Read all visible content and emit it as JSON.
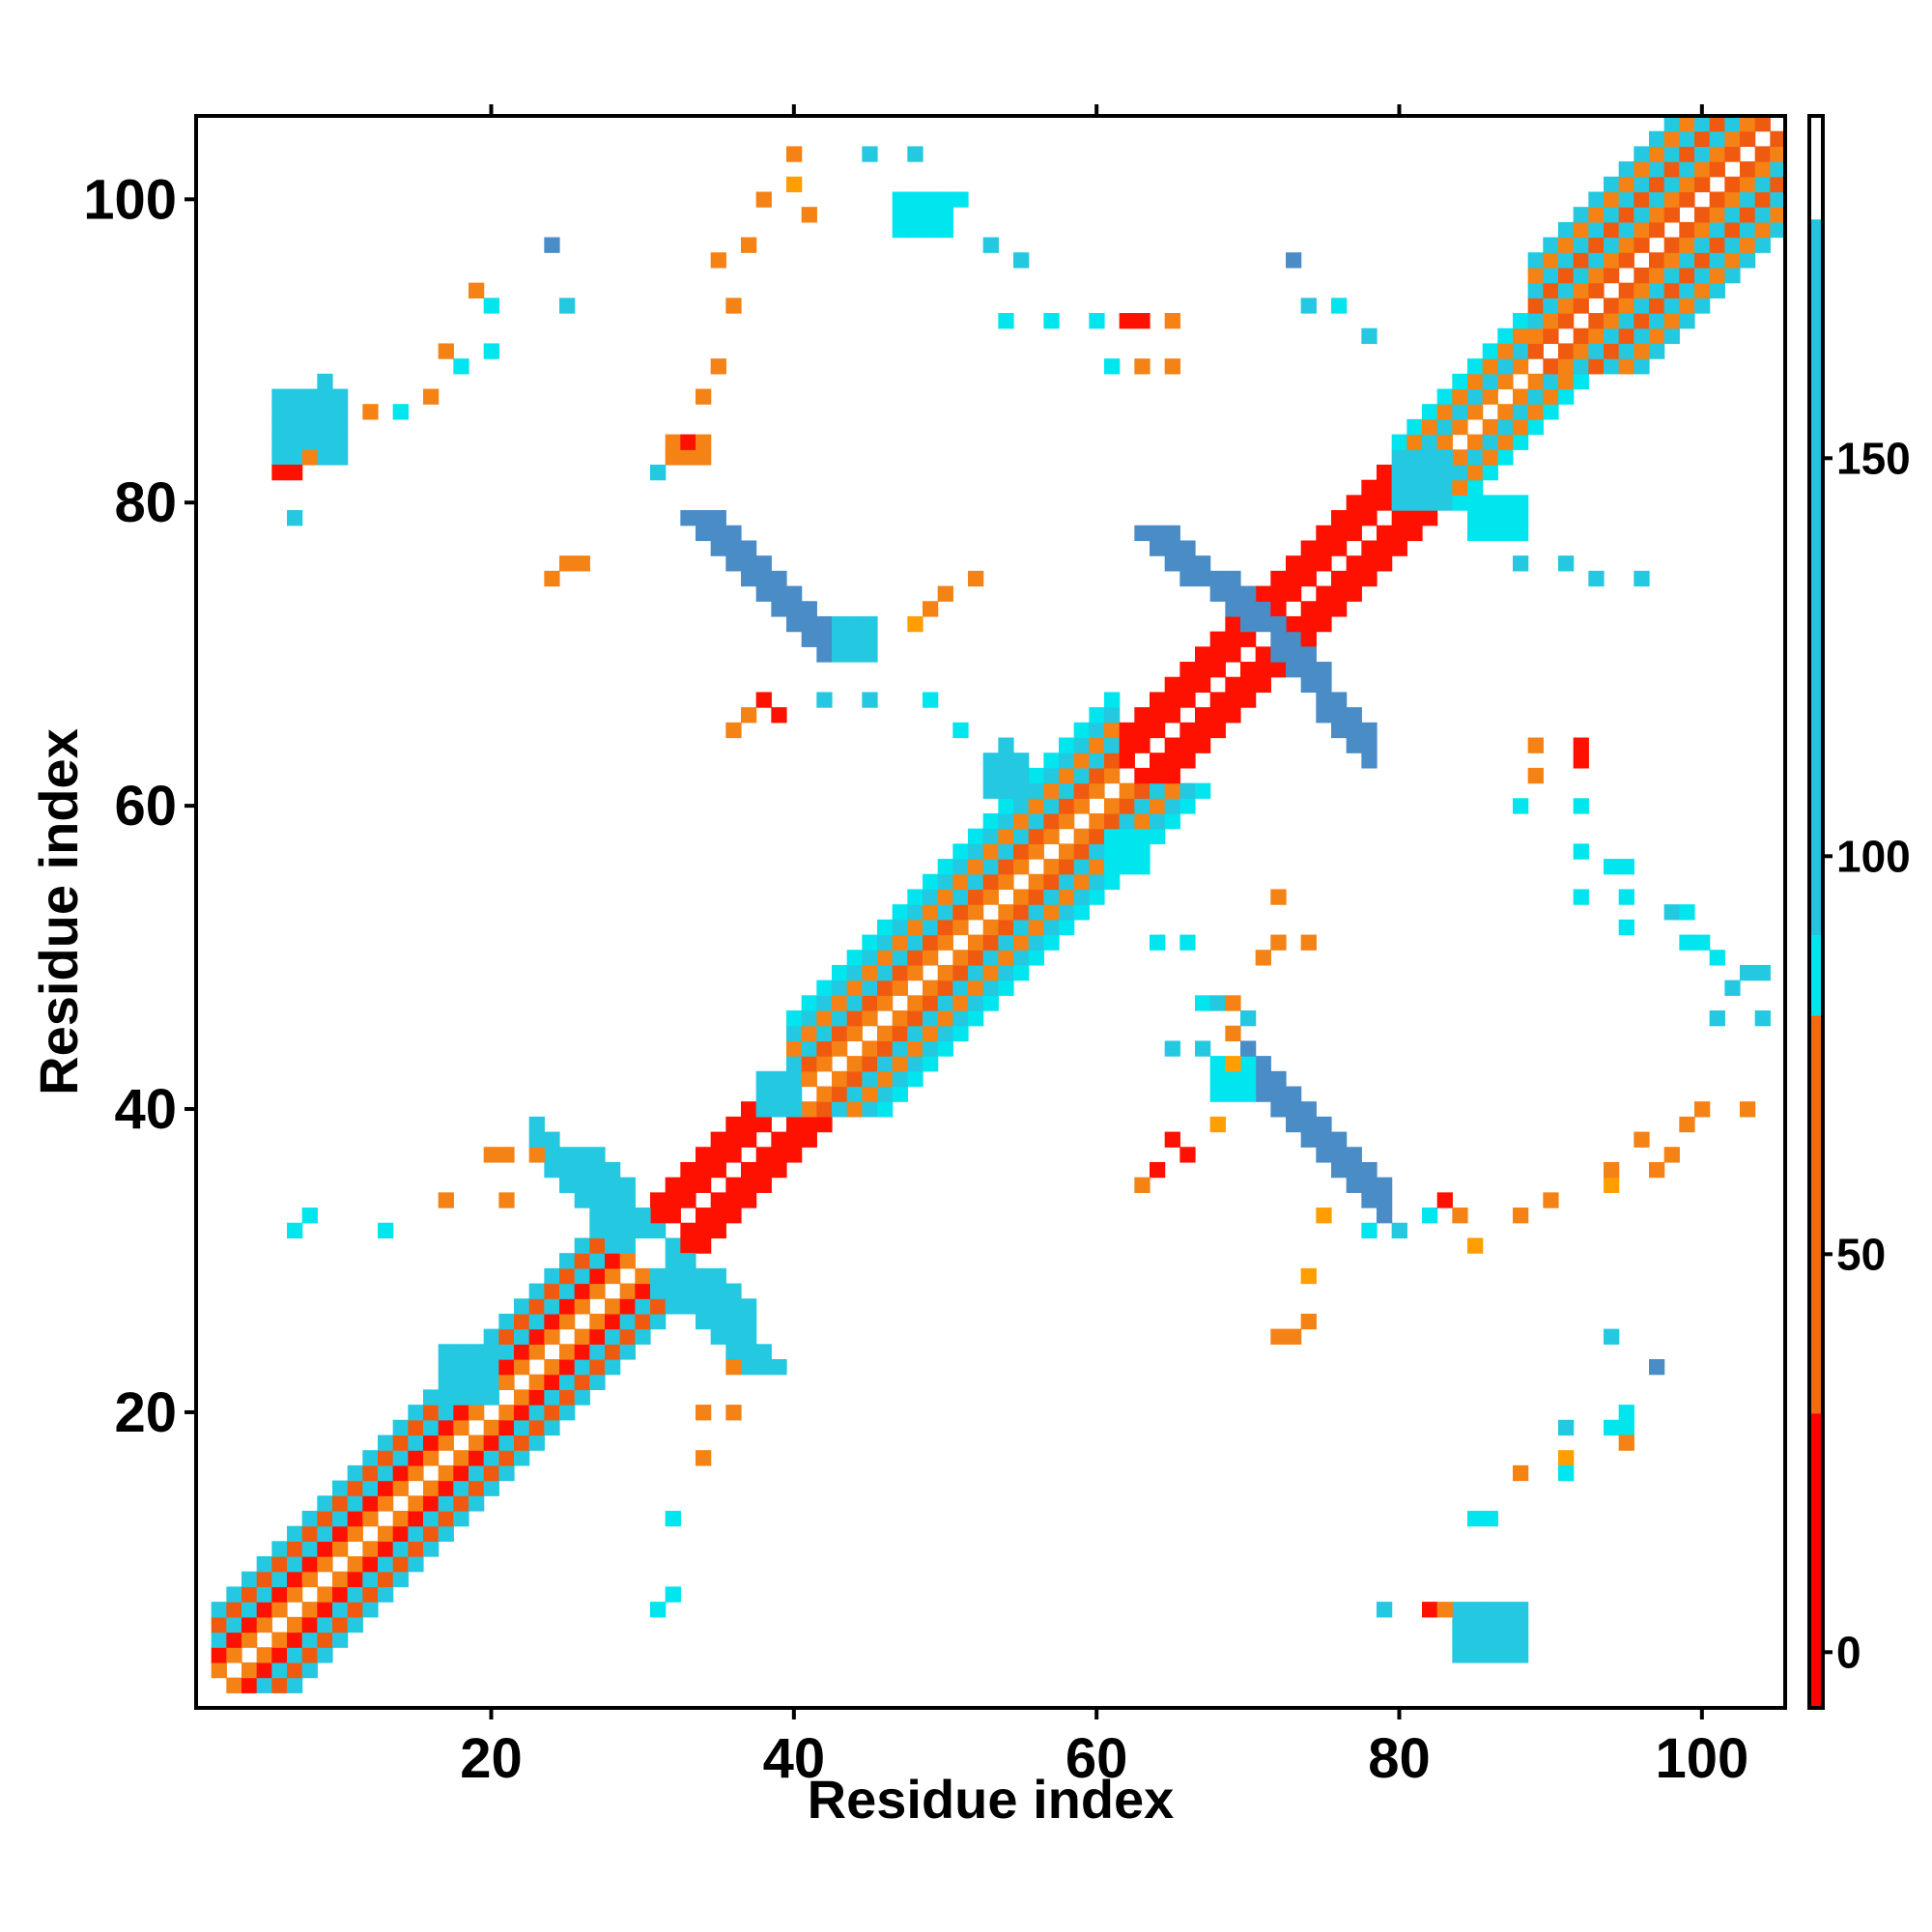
{
  "chart_data": {
    "type": "heatmap",
    "title": "",
    "xlabel": "Residue index",
    "ylabel": "Residue index",
    "xlim": [
      1,
      105
    ],
    "ylim": [
      1,
      105
    ],
    "xticks": [
      20,
      40,
      60,
      80,
      100
    ],
    "yticks": [
      20,
      40,
      60,
      80,
      100
    ],
    "colorbar": {
      "ticks": [
        0,
        50,
        100,
        150
      ],
      "range": [
        -7,
        193
      ],
      "bands": [
        {
          "from": -7,
          "to": 30,
          "color": "#ff0000"
        },
        {
          "from": 30,
          "to": 80,
          "color": "#f26b0f"
        },
        {
          "from": 80,
          "to": 90,
          "color": "#00e5ee"
        },
        {
          "from": 90,
          "to": 180,
          "color": "#22c5dd"
        },
        {
          "from": 180,
          "to": 193,
          "color": "#ffffff"
        }
      ]
    },
    "colors": {
      "red": "#ff1100",
      "orange_red": "#f05a10",
      "orange": "#f58214",
      "amber": "#ff9e00",
      "cyan": "#00e5ee",
      "sky": "#24c8e0",
      "steel": "#4a8cc6"
    },
    "diagonal_bands": [
      {
        "start": 2,
        "end": 29,
        "offsets": [
          [
            1,
            "orange"
          ],
          [
            2,
            "red"
          ],
          [
            3,
            "sky"
          ],
          [
            4,
            "orange_red"
          ],
          [
            5,
            "sky"
          ]
        ]
      },
      {
        "start": 31,
        "end": 40,
        "offsets": [
          [
            1,
            "red"
          ],
          [
            2,
            "red"
          ],
          [
            3,
            "red"
          ]
        ]
      },
      {
        "start": 40,
        "end": 61,
        "offsets": [
          [
            1,
            "orange"
          ],
          [
            2,
            "orange_red"
          ],
          [
            3,
            "sky"
          ],
          [
            4,
            "orange"
          ],
          [
            5,
            "sky"
          ],
          [
            6,
            "cyan"
          ]
        ]
      },
      {
        "start": 62,
        "end": 71,
        "offsets": [
          [
            1,
            "red"
          ],
          [
            2,
            "red"
          ],
          [
            3,
            "red"
          ]
        ]
      },
      {
        "start": 72,
        "end": 79,
        "offsets": [
          [
            1,
            "red"
          ],
          [
            2,
            "red"
          ],
          [
            3,
            "red"
          ]
        ]
      },
      {
        "start": 80,
        "end": 89,
        "offsets": [
          [
            1,
            "orange"
          ],
          [
            2,
            "sky"
          ],
          [
            3,
            "orange"
          ],
          [
            4,
            "cyan"
          ]
        ]
      },
      {
        "start": 89,
        "end": 105,
        "offsets": [
          [
            1,
            "orange_red"
          ],
          [
            2,
            "orange"
          ],
          [
            3,
            "sky"
          ],
          [
            4,
            "orange_red"
          ],
          [
            5,
            "sky"
          ],
          [
            6,
            "orange"
          ],
          [
            7,
            "sky"
          ]
        ]
      }
    ],
    "anti_diagonal_streaks": [
      {
        "x0": 25,
        "y0": 37,
        "x1": 29,
        "y1": 32,
        "color": "sky"
      },
      {
        "x0": 33,
        "y0": 79,
        "x1": 42,
        "y1": 70,
        "color": "steel"
      },
      {
        "x0": 63,
        "y0": 78,
        "x1": 70,
        "y1": 72,
        "color": "steel"
      },
      {
        "x0": 31,
        "y0": 29,
        "x1": 37,
        "y1": 23,
        "color": "sky"
      }
    ],
    "blocks": [
      {
        "x": 6,
        "y": 83,
        "w": 5,
        "h": 5,
        "color": "sky"
      },
      {
        "x": 84,
        "y": 4,
        "w": 5,
        "h": 4,
        "color": "sky"
      },
      {
        "x": 80,
        "y": 80,
        "w": 4,
        "h": 4,
        "color": "sky"
      },
      {
        "x": 85,
        "y": 78,
        "w": 4,
        "h": 3,
        "color": "cyan"
      },
      {
        "x": 47,
        "y": 98,
        "w": 4,
        "h": 3,
        "color": "cyan"
      },
      {
        "x": 32,
        "y": 83,
        "w": 3,
        "h": 2,
        "color": "orange"
      },
      {
        "x": 53,
        "y": 61,
        "w": 3,
        "h": 3,
        "color": "sky"
      },
      {
        "x": 61,
        "y": 56,
        "w": 3,
        "h": 3,
        "color": "cyan"
      },
      {
        "x": 68,
        "y": 41,
        "w": 3,
        "h": 3,
        "color": "cyan"
      },
      {
        "x": 43,
        "y": 70,
        "w": 3,
        "h": 3,
        "color": "sky"
      },
      {
        "x": 38,
        "y": 40,
        "w": 3,
        "h": 3,
        "color": "sky"
      },
      {
        "x": 17,
        "y": 21,
        "w": 4,
        "h": 4,
        "color": "sky"
      }
    ],
    "points": [
      [
        7,
        79,
        "sky"
      ],
      [
        9,
        88,
        "sky"
      ],
      [
        14,
        86,
        "cyan"
      ],
      [
        18,
        89,
        "cyan"
      ],
      [
        19,
        94,
        "orange"
      ],
      [
        20,
        93,
        "cyan"
      ],
      [
        20,
        90,
        "cyan"
      ],
      [
        24,
        97,
        "steel"
      ],
      [
        25,
        93,
        "sky"
      ],
      [
        24,
        75,
        "orange"
      ],
      [
        25,
        76,
        "orange"
      ],
      [
        26,
        76,
        "orange"
      ],
      [
        36,
        93,
        "orange"
      ],
      [
        35,
        96,
        "orange"
      ],
      [
        37,
        97,
        "orange"
      ],
      [
        38,
        100,
        "orange"
      ],
      [
        40,
        101,
        "amber"
      ],
      [
        41,
        99,
        "orange"
      ],
      [
        45,
        103,
        "sky"
      ],
      [
        48,
        103,
        "sky"
      ],
      [
        51,
        100,
        "cyan"
      ],
      [
        53,
        97,
        "sky"
      ],
      [
        55,
        96,
        "sky"
      ],
      [
        54,
        92,
        "cyan"
      ],
      [
        57,
        92,
        "cyan"
      ],
      [
        60,
        92,
        "cyan"
      ],
      [
        62,
        92,
        "red"
      ],
      [
        63,
        92,
        "red"
      ],
      [
        65,
        92,
        "orange"
      ],
      [
        61,
        89,
        "cyan"
      ],
      [
        63,
        89,
        "orange"
      ],
      [
        65,
        89,
        "orange"
      ],
      [
        52,
        75,
        "orange"
      ],
      [
        50,
        74,
        "orange"
      ],
      [
        49,
        73,
        "orange"
      ],
      [
        48,
        72,
        "amber"
      ],
      [
        39,
        66,
        "red"
      ],
      [
        38,
        67,
        "red"
      ],
      [
        37,
        66,
        "orange"
      ],
      [
        36,
        65,
        "orange"
      ],
      [
        42,
        67,
        "sky"
      ],
      [
        45,
        67,
        "sky"
      ],
      [
        49,
        67,
        "cyan"
      ],
      [
        51,
        65,
        "cyan"
      ],
      [
        54,
        63,
        "sky"
      ],
      [
        54,
        64,
        "sky"
      ],
      [
        73,
        96,
        "steel"
      ],
      [
        74,
        93,
        "sky"
      ],
      [
        76,
        93,
        "cyan"
      ],
      [
        78,
        91,
        "sky"
      ],
      [
        84,
        87,
        "orange"
      ],
      [
        88,
        76,
        "sky"
      ],
      [
        91,
        76,
        "sky"
      ],
      [
        93,
        75,
        "sky"
      ],
      [
        96,
        75,
        "sky"
      ],
      [
        89,
        64,
        "orange"
      ],
      [
        92,
        64,
        "red"
      ],
      [
        92,
        63,
        "red"
      ],
      [
        89,
        62,
        "orange"
      ],
      [
        88,
        60,
        "cyan"
      ],
      [
        92,
        60,
        "cyan"
      ],
      [
        92,
        57,
        "cyan"
      ],
      [
        94,
        56,
        "cyan"
      ],
      [
        95,
        56,
        "cyan"
      ],
      [
        92,
        54,
        "cyan"
      ],
      [
        95,
        54,
        "cyan"
      ],
      [
        95,
        52,
        "cyan"
      ],
      [
        98,
        53,
        "sky"
      ],
      [
        99,
        53,
        "cyan"
      ],
      [
        99,
        51,
        "cyan"
      ],
      [
        100,
        51,
        "cyan"
      ],
      [
        101,
        50,
        "cyan"
      ],
      [
        103,
        49,
        "sky"
      ],
      [
        102,
        48,
        "sky"
      ],
      [
        104,
        49,
        "sky"
      ],
      [
        101,
        46,
        "sky"
      ],
      [
        104,
        46,
        "sky"
      ],
      [
        100,
        40,
        "orange"
      ],
      [
        103,
        40,
        "orange"
      ],
      [
        72,
        54,
        "orange"
      ],
      [
        74,
        51,
        "orange"
      ],
      [
        72,
        51,
        "orange"
      ],
      [
        71,
        50,
        "orange"
      ],
      [
        66,
        51,
        "cyan"
      ],
      [
        64,
        51,
        "cyan"
      ],
      [
        67,
        47,
        "cyan"
      ],
      [
        68,
        47,
        "sky"
      ],
      [
        69,
        47,
        "orange"
      ],
      [
        70,
        46,
        "sky"
      ],
      [
        69,
        45,
        "orange"
      ],
      [
        67,
        44,
        "sky"
      ],
      [
        65,
        44,
        "sky"
      ],
      [
        69,
        43,
        "amber"
      ],
      [
        68,
        39,
        "amber"
      ],
      [
        66,
        37,
        "red"
      ],
      [
        65,
        38,
        "red"
      ],
      [
        64,
        36,
        "red"
      ],
      [
        63,
        35,
        "orange"
      ],
      [
        74,
        29,
        "amber"
      ],
      [
        74,
        26,
        "orange"
      ],
      [
        73,
        25,
        "orange"
      ],
      [
        72,
        25,
        "orange"
      ],
      [
        75,
        33,
        "amber"
      ],
      [
        78,
        32,
        "cyan"
      ],
      [
        80,
        32,
        "sky"
      ],
      [
        82,
        33,
        "cyan"
      ],
      [
        83,
        34,
        "red"
      ],
      [
        84,
        33,
        "orange"
      ],
      [
        85,
        31,
        "amber"
      ],
      [
        88,
        33,
        "orange"
      ],
      [
        90,
        34,
        "orange"
      ],
      [
        94,
        35,
        "amber"
      ],
      [
        94,
        36,
        "orange"
      ],
      [
        97,
        36,
        "orange"
      ],
      [
        98,
        37,
        "orange"
      ],
      [
        96,
        38,
        "orange"
      ],
      [
        99,
        39,
        "orange"
      ],
      [
        94,
        25,
        "sky"
      ],
      [
        97,
        23,
        "steel"
      ],
      [
        94,
        19,
        "cyan"
      ],
      [
        95,
        19,
        "cyan"
      ],
      [
        95,
        20,
        "cyan"
      ],
      [
        91,
        19,
        "sky"
      ],
      [
        95,
        18,
        "orange"
      ],
      [
        91,
        17,
        "amber"
      ],
      [
        88,
        16,
        "orange"
      ],
      [
        91,
        16,
        "cyan"
      ],
      [
        85,
        13,
        "cyan"
      ],
      [
        86,
        13,
        "cyan"
      ],
      [
        79,
        7,
        "sky"
      ],
      [
        82,
        7,
        "red"
      ],
      [
        83,
        7,
        "orange"
      ],
      [
        32,
        13,
        "cyan"
      ],
      [
        31,
        7,
        "cyan"
      ],
      [
        32,
        8,
        "cyan"
      ],
      [
        34,
        17,
        "orange"
      ],
      [
        34,
        20,
        "orange"
      ],
      [
        36,
        20,
        "orange"
      ],
      [
        36,
        23,
        "orange"
      ],
      [
        20,
        37,
        "orange"
      ],
      [
        21,
        37,
        "orange"
      ],
      [
        23,
        37,
        "orange"
      ],
      [
        17,
        34,
        "orange"
      ],
      [
        21,
        34,
        "orange"
      ],
      [
        8,
        33,
        "cyan"
      ],
      [
        7,
        32,
        "cyan"
      ],
      [
        13,
        32,
        "cyan"
      ],
      [
        6,
        82,
        "red"
      ],
      [
        7,
        82,
        "red"
      ],
      [
        8,
        83,
        "orange"
      ],
      [
        12,
        86,
        "orange"
      ],
      [
        16,
        87,
        "orange"
      ],
      [
        17,
        90,
        "orange"
      ],
      [
        31,
        82,
        "sky"
      ],
      [
        33,
        84,
        "red"
      ],
      [
        34,
        87,
        "orange"
      ],
      [
        35,
        89,
        "orange"
      ],
      [
        40,
        103,
        "orange"
      ]
    ]
  }
}
